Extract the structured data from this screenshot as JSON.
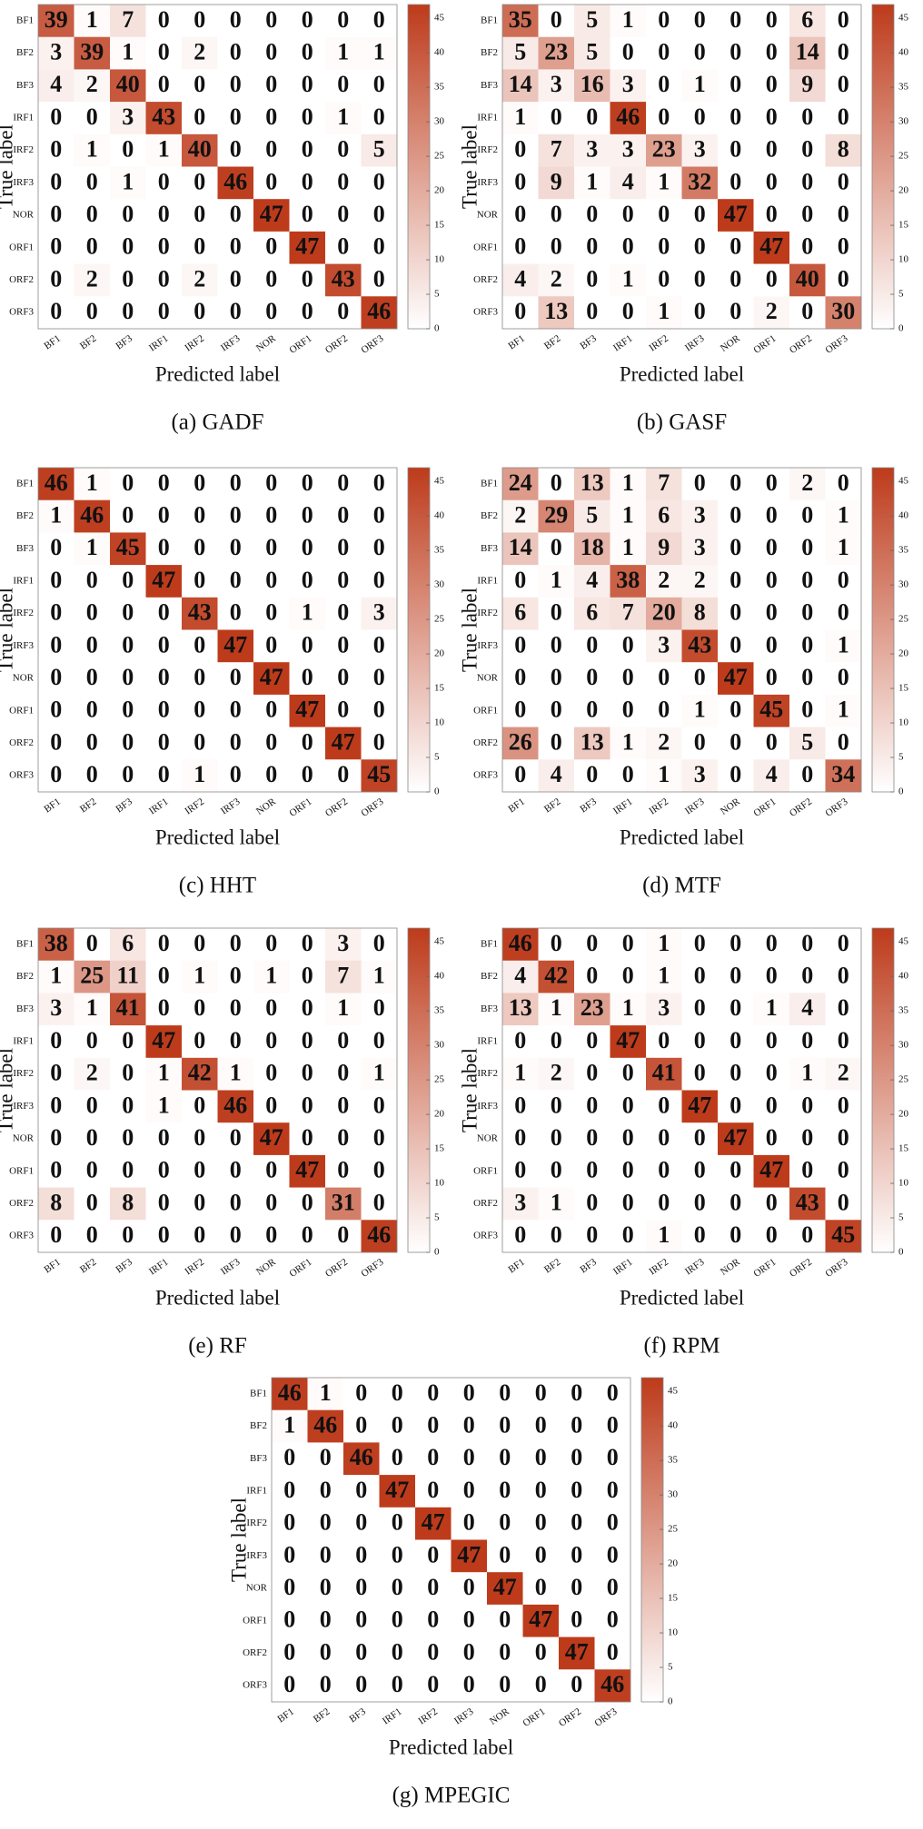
{
  "chart_data": [
    {
      "type": "heatmap",
      "caption": "(a) GADF",
      "xlabel": "Predicted label",
      "ylabel": "True label",
      "x_categories": [
        "BF1",
        "BF2",
        "BF3",
        "IRF1",
        "IRF2",
        "IRF3",
        "NOR",
        "ORF1",
        "ORF2",
        "ORF3"
      ],
      "y_categories": [
        "BF1",
        "BF2",
        "BF3",
        "IRF1",
        "IRF2",
        "IRF3",
        "NOR",
        "ORF1",
        "ORF2",
        "ORF3"
      ],
      "values": [
        [
          39,
          1,
          7,
          0,
          0,
          0,
          0,
          0,
          0,
          0
        ],
        [
          3,
          39,
          1,
          0,
          2,
          0,
          0,
          0,
          1,
          1
        ],
        [
          4,
          2,
          40,
          0,
          0,
          0,
          0,
          0,
          0,
          0
        ],
        [
          0,
          0,
          3,
          43,
          0,
          0,
          0,
          0,
          1,
          0
        ],
        [
          0,
          1,
          0,
          1,
          40,
          0,
          0,
          0,
          0,
          5
        ],
        [
          0,
          0,
          1,
          0,
          0,
          46,
          0,
          0,
          0,
          0
        ],
        [
          0,
          0,
          0,
          0,
          0,
          0,
          47,
          0,
          0,
          0
        ],
        [
          0,
          0,
          0,
          0,
          0,
          0,
          0,
          47,
          0,
          0
        ],
        [
          0,
          2,
          0,
          0,
          2,
          0,
          0,
          0,
          43,
          0
        ],
        [
          0,
          0,
          0,
          0,
          0,
          0,
          0,
          0,
          0,
          46
        ]
      ],
      "zlim": [
        0,
        47
      ],
      "zticks": [
        0,
        5,
        10,
        15,
        20,
        25,
        30,
        35,
        40,
        45
      ],
      "colormap": [
        "#ffffff",
        "#bd3b1b"
      ]
    },
    {
      "type": "heatmap",
      "caption": "(b) GASF",
      "xlabel": "Predicted label",
      "ylabel": "True label",
      "x_categories": [
        "BF1",
        "BF2",
        "BF3",
        "IRF1",
        "IRF2",
        "IRF3",
        "NOR",
        "ORF1",
        "ORF2",
        "ORF3"
      ],
      "y_categories": [
        "BF1",
        "BF2",
        "BF3",
        "IRF1",
        "IRF2",
        "IRF3",
        "NOR",
        "ORF1",
        "ORF2",
        "ORF3"
      ],
      "values": [
        [
          35,
          0,
          5,
          1,
          0,
          0,
          0,
          0,
          6,
          0
        ],
        [
          5,
          23,
          5,
          0,
          0,
          0,
          0,
          0,
          14,
          0
        ],
        [
          14,
          3,
          16,
          3,
          0,
          1,
          0,
          0,
          9,
          0
        ],
        [
          1,
          0,
          0,
          46,
          0,
          0,
          0,
          0,
          0,
          0
        ],
        [
          0,
          7,
          3,
          3,
          23,
          3,
          0,
          0,
          0,
          8
        ],
        [
          0,
          9,
          1,
          4,
          1,
          32,
          0,
          0,
          0,
          0
        ],
        [
          0,
          0,
          0,
          0,
          0,
          0,
          47,
          0,
          0,
          0
        ],
        [
          0,
          0,
          0,
          0,
          0,
          0,
          0,
          47,
          0,
          0
        ],
        [
          4,
          2,
          0,
          1,
          0,
          0,
          0,
          0,
          40,
          0
        ],
        [
          0,
          13,
          0,
          0,
          1,
          0,
          0,
          2,
          0,
          30
        ]
      ],
      "zlim": [
        0,
        47
      ],
      "zticks": [
        0,
        5,
        10,
        15,
        20,
        25,
        30,
        35,
        40,
        45
      ],
      "colormap": [
        "#ffffff",
        "#bd3b1b"
      ]
    },
    {
      "type": "heatmap",
      "caption": "(c) HHT",
      "xlabel": "Predicted label",
      "ylabel": "True label",
      "x_categories": [
        "BF1",
        "BF2",
        "BF3",
        "IRF1",
        "IRF2",
        "IRF3",
        "NOR",
        "ORF1",
        "ORF2",
        "ORF3"
      ],
      "y_categories": [
        "BF1",
        "BF2",
        "BF3",
        "IRF1",
        "IRF2",
        "IRF3",
        "NOR",
        "ORF1",
        "ORF2",
        "ORF3"
      ],
      "values": [
        [
          46,
          1,
          0,
          0,
          0,
          0,
          0,
          0,
          0,
          0
        ],
        [
          1,
          46,
          0,
          0,
          0,
          0,
          0,
          0,
          0,
          0
        ],
        [
          0,
          1,
          45,
          0,
          0,
          0,
          0,
          0,
          0,
          0
        ],
        [
          0,
          0,
          0,
          47,
          0,
          0,
          0,
          0,
          0,
          0
        ],
        [
          0,
          0,
          0,
          0,
          43,
          0,
          0,
          1,
          0,
          3
        ],
        [
          0,
          0,
          0,
          0,
          0,
          47,
          0,
          0,
          0,
          0
        ],
        [
          0,
          0,
          0,
          0,
          0,
          0,
          47,
          0,
          0,
          0
        ],
        [
          0,
          0,
          0,
          0,
          0,
          0,
          0,
          47,
          0,
          0
        ],
        [
          0,
          0,
          0,
          0,
          0,
          0,
          0,
          0,
          47,
          0
        ],
        [
          0,
          0,
          0,
          0,
          1,
          0,
          0,
          0,
          0,
          45
        ]
      ],
      "zlim": [
        0,
        47
      ],
      "zticks": [
        0,
        5,
        10,
        15,
        20,
        25,
        30,
        35,
        40,
        45
      ],
      "colormap": [
        "#ffffff",
        "#bd3b1b"
      ]
    },
    {
      "type": "heatmap",
      "caption": "(d) MTF",
      "xlabel": "Predicted label",
      "ylabel": "True label",
      "x_categories": [
        "BF1",
        "BF2",
        "BF3",
        "IRF1",
        "IRF2",
        "IRF3",
        "NOR",
        "ORF1",
        "ORF2",
        "ORF3"
      ],
      "y_categories": [
        "BF1",
        "BF2",
        "BF3",
        "IRF1",
        "IRF2",
        "IRF3",
        "NOR",
        "ORF1",
        "ORF2",
        "ORF3"
      ],
      "values": [
        [
          24,
          0,
          13,
          1,
          7,
          0,
          0,
          0,
          2,
          0
        ],
        [
          2,
          29,
          5,
          1,
          6,
          3,
          0,
          0,
          0,
          1
        ],
        [
          14,
          0,
          18,
          1,
          9,
          3,
          0,
          0,
          0,
          1
        ],
        [
          0,
          1,
          4,
          38,
          2,
          2,
          0,
          0,
          0,
          0
        ],
        [
          6,
          0,
          6,
          7,
          20,
          8,
          0,
          0,
          0,
          0
        ],
        [
          0,
          0,
          0,
          0,
          3,
          43,
          0,
          0,
          0,
          1
        ],
        [
          0,
          0,
          0,
          0,
          0,
          0,
          47,
          0,
          0,
          0
        ],
        [
          0,
          0,
          0,
          0,
          0,
          1,
          0,
          45,
          0,
          1
        ],
        [
          26,
          0,
          13,
          1,
          2,
          0,
          0,
          0,
          5,
          0
        ],
        [
          0,
          4,
          0,
          0,
          1,
          3,
          0,
          4,
          0,
          34
        ]
      ],
      "zlim": [
        0,
        47
      ],
      "zticks": [
        0,
        5,
        10,
        15,
        20,
        25,
        30,
        35,
        40,
        45
      ],
      "colormap": [
        "#ffffff",
        "#bd3b1b"
      ]
    },
    {
      "type": "heatmap",
      "caption": "(e) RF",
      "xlabel": "Predicted label",
      "ylabel": "True label",
      "x_categories": [
        "BF1",
        "BF2",
        "BF3",
        "IRF1",
        "IRF2",
        "IRF3",
        "NOR",
        "ORF1",
        "ORF2",
        "ORF3"
      ],
      "y_categories": [
        "BF1",
        "BF2",
        "BF3",
        "IRF1",
        "IRF2",
        "IRF3",
        "NOR",
        "ORF1",
        "ORF2",
        "ORF3"
      ],
      "values": [
        [
          38,
          0,
          6,
          0,
          0,
          0,
          0,
          0,
          3,
          0
        ],
        [
          1,
          25,
          11,
          0,
          1,
          0,
          1,
          0,
          7,
          1
        ],
        [
          3,
          1,
          41,
          0,
          0,
          0,
          0,
          0,
          1,
          0
        ],
        [
          0,
          0,
          0,
          47,
          0,
          0,
          0,
          0,
          0,
          0
        ],
        [
          0,
          2,
          0,
          1,
          42,
          1,
          0,
          0,
          0,
          1
        ],
        [
          0,
          0,
          0,
          1,
          0,
          46,
          0,
          0,
          0,
          0
        ],
        [
          0,
          0,
          0,
          0,
          0,
          0,
          47,
          0,
          0,
          0
        ],
        [
          0,
          0,
          0,
          0,
          0,
          0,
          0,
          47,
          0,
          0
        ],
        [
          8,
          0,
          8,
          0,
          0,
          0,
          0,
          0,
          31,
          0
        ],
        [
          0,
          0,
          0,
          0,
          0,
          0,
          0,
          0,
          0,
          46
        ]
      ],
      "zlim": [
        0,
        47
      ],
      "zticks": [
        0,
        5,
        10,
        15,
        20,
        25,
        30,
        35,
        40,
        45
      ],
      "colormap": [
        "#ffffff",
        "#bd3b1b"
      ]
    },
    {
      "type": "heatmap",
      "caption": "(f) RPM",
      "xlabel": "Predicted label",
      "ylabel": "True label",
      "x_categories": [
        "BF1",
        "BF2",
        "BF3",
        "IRF1",
        "IRF2",
        "IRF3",
        "NOR",
        "ORF1",
        "ORF2",
        "ORF3"
      ],
      "y_categories": [
        "BF1",
        "BF2",
        "BF3",
        "IRF1",
        "IRF2",
        "IRF3",
        "NOR",
        "ORF1",
        "ORF2",
        "ORF3"
      ],
      "values": [
        [
          46,
          0,
          0,
          0,
          1,
          0,
          0,
          0,
          0,
          0
        ],
        [
          4,
          42,
          0,
          0,
          1,
          0,
          0,
          0,
          0,
          0
        ],
        [
          13,
          1,
          23,
          1,
          3,
          0,
          0,
          1,
          4,
          0
        ],
        [
          0,
          0,
          0,
          47,
          0,
          0,
          0,
          0,
          0,
          0
        ],
        [
          1,
          2,
          0,
          0,
          41,
          0,
          0,
          0,
          1,
          2
        ],
        [
          0,
          0,
          0,
          0,
          0,
          47,
          0,
          0,
          0,
          0
        ],
        [
          0,
          0,
          0,
          0,
          0,
          0,
          47,
          0,
          0,
          0
        ],
        [
          0,
          0,
          0,
          0,
          0,
          0,
          0,
          47,
          0,
          0
        ],
        [
          3,
          1,
          0,
          0,
          0,
          0,
          0,
          0,
          43,
          0
        ],
        [
          0,
          0,
          0,
          0,
          1,
          0,
          0,
          0,
          0,
          45
        ]
      ],
      "zlim": [
        0,
        47
      ],
      "zticks": [
        0,
        5,
        10,
        15,
        20,
        25,
        30,
        35,
        40,
        45
      ],
      "colormap": [
        "#ffffff",
        "#bd3b1b"
      ]
    },
    {
      "type": "heatmap",
      "caption": "(g) MPEGIC",
      "xlabel": "Predicted label",
      "ylabel": "True label",
      "x_categories": [
        "BF1",
        "BF2",
        "BF3",
        "IRF1",
        "IRF2",
        "IRF3",
        "NOR",
        "ORF1",
        "ORF2",
        "ORF3"
      ],
      "y_categories": [
        "BF1",
        "BF2",
        "BF3",
        "IRF1",
        "IRF2",
        "IRF3",
        "NOR",
        "ORF1",
        "ORF2",
        "ORF3"
      ],
      "values": [
        [
          46,
          1,
          0,
          0,
          0,
          0,
          0,
          0,
          0,
          0
        ],
        [
          1,
          46,
          0,
          0,
          0,
          0,
          0,
          0,
          0,
          0
        ],
        [
          0,
          0,
          46,
          0,
          0,
          0,
          0,
          0,
          0,
          0
        ],
        [
          0,
          0,
          0,
          47,
          0,
          0,
          0,
          0,
          0,
          0
        ],
        [
          0,
          0,
          0,
          0,
          47,
          0,
          0,
          0,
          0,
          0
        ],
        [
          0,
          0,
          0,
          0,
          0,
          47,
          0,
          0,
          0,
          0
        ],
        [
          0,
          0,
          0,
          0,
          0,
          0,
          47,
          0,
          0,
          0
        ],
        [
          0,
          0,
          0,
          0,
          0,
          0,
          0,
          47,
          0,
          0
        ],
        [
          0,
          0,
          0,
          0,
          0,
          0,
          0,
          0,
          47,
          0
        ],
        [
          0,
          0,
          0,
          0,
          0,
          0,
          0,
          0,
          0,
          46
        ]
      ],
      "zlim": [
        0,
        47
      ],
      "zticks": [
        0,
        5,
        10,
        15,
        20,
        25,
        30,
        35,
        40,
        45
      ],
      "colormap": [
        "#ffffff",
        "#bd3b1b"
      ]
    }
  ]
}
